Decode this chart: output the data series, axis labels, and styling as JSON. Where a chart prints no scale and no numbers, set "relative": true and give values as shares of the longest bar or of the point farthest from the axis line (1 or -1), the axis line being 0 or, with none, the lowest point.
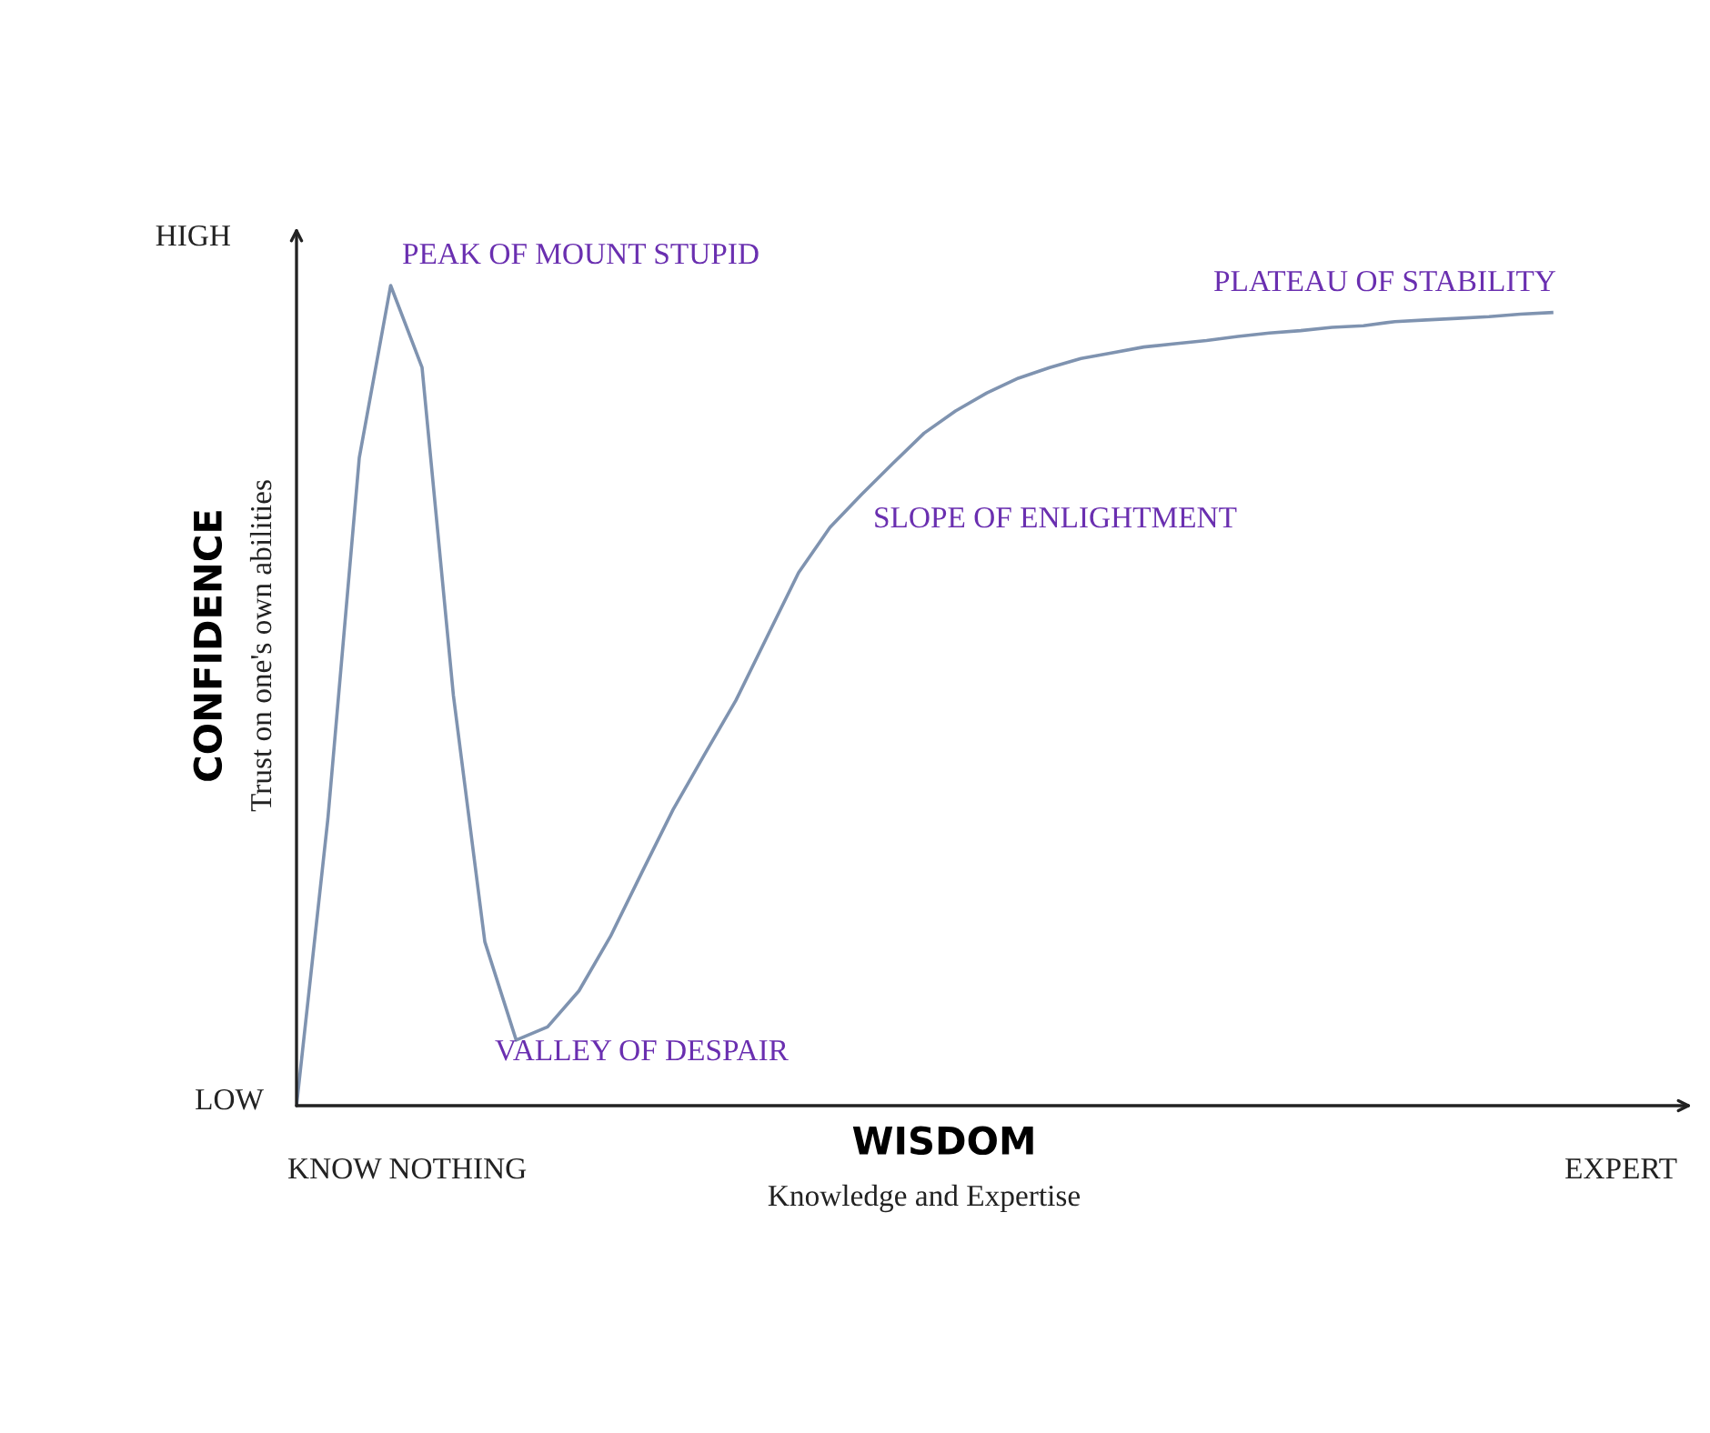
{
  "chart_data": {
    "type": "line",
    "relative": true,
    "xlabel": "WISDOM",
    "ylabel": "CONFIDENCE",
    "categories": [
      null,
      null,
      null,
      null,
      null,
      null,
      null,
      null,
      null,
      null,
      null,
      null,
      null,
      null,
      null,
      null,
      null,
      null,
      null,
      null,
      null,
      null,
      null,
      null,
      null,
      null,
      null,
      null,
      null,
      null,
      null,
      null,
      null,
      null,
      null,
      null,
      null,
      null,
      null,
      null,
      null
    ],
    "series": [
      {
        "color": "#7f93b0",
        "values": [
          0,
          0.35,
          0.79,
          1.0,
          0.9,
          0.5,
          0.2,
          0.08,
          0.096,
          0.14,
          0.206,
          0.284,
          0.361,
          0.428,
          0.494,
          0.572,
          0.65,
          0.705,
          0.745,
          0.783,
          0.82,
          0.847,
          0.869,
          0.887,
          0.9,
          0.911,
          0.918,
          0.925,
          0.929,
          0.933,
          0.938,
          0.942,
          0.945,
          0.949,
          0.951,
          0.956,
          0.958,
          0.96,
          0.962,
          0.965,
          0.967
        ]
      }
    ],
    "annotations": [
      "HIGH",
      "LOW",
      "KNOW NOTHING",
      "EXPERT",
      "Knowledge and Expertise",
      "Trust on one's own abilities",
      "PEAK OF MOUNT STUPID",
      "VALLEY OF DESPAIR",
      "SLOPE OF ENLIGHTMENT",
      "PLATEAU OF STABILITY"
    ],
    "grid": false,
    "legend": false
  }
}
